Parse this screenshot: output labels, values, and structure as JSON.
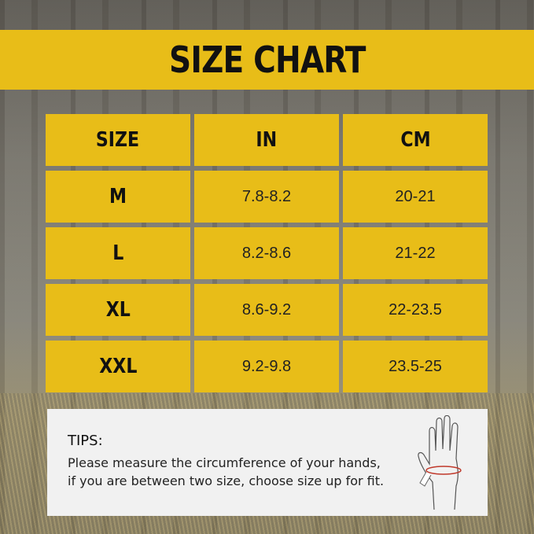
{
  "title": "SIZE CHART",
  "table": {
    "headers": [
      "SIZE",
      "IN",
      "CM"
    ],
    "rows": [
      [
        "M",
        "7.8-8.2",
        "20-21"
      ],
      [
        "L",
        "8.2-8.6",
        "21-22"
      ],
      [
        "XL",
        "8.6-9.2",
        "22-23.5"
      ],
      [
        "XXL",
        "9.2-9.8",
        "23.5-25"
      ]
    ]
  },
  "tips": {
    "title": "TIPS:",
    "line1": "Please measure the circumference of your hands,",
    "line2": "if you are between two size, choose size up for fit."
  },
  "colors": {
    "accent": "#e8bd18",
    "tips_bg": "#f1f1f1",
    "tape": "#c0392b"
  },
  "icons": [
    "hand-measuring-tape-icon"
  ]
}
